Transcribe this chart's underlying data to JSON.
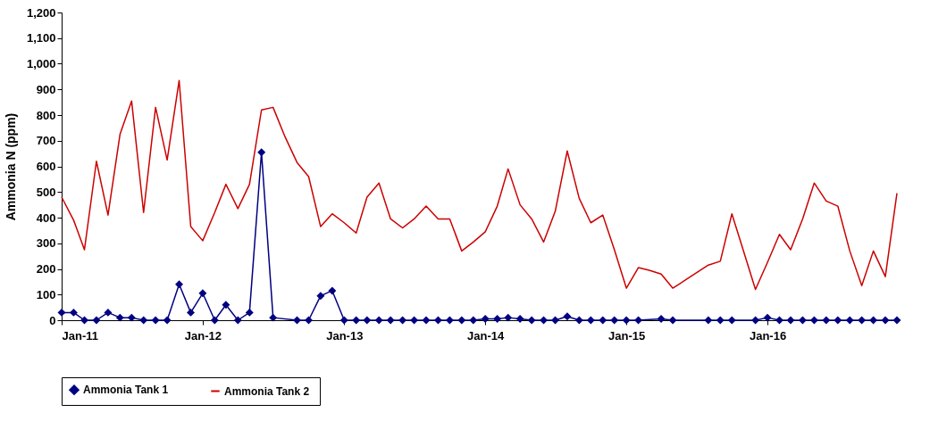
{
  "chart_data": {
    "type": "line",
    "ylabel": "Ammonia N (ppm)",
    "x": [
      "2011-01",
      "2011-02",
      "2011-03",
      "2011-04",
      "2011-05",
      "2011-06",
      "2011-07",
      "2011-08",
      "2011-09",
      "2011-10",
      "2011-11",
      "2011-12",
      "2012-01",
      "2012-02",
      "2012-03",
      "2012-04",
      "2012-05",
      "2012-06",
      "2012-07",
      "2012-08",
      "2012-09",
      "2012-10",
      "2012-11",
      "2012-12",
      "2013-01",
      "2013-02",
      "2013-03",
      "2013-04",
      "2013-05",
      "2013-06",
      "2013-07",
      "2013-08",
      "2013-09",
      "2013-10",
      "2013-11",
      "2013-12",
      "2014-01",
      "2014-02",
      "2014-03",
      "2014-04",
      "2014-05",
      "2014-06",
      "2014-07",
      "2014-08",
      "2014-09",
      "2014-10",
      "2014-11",
      "2014-12",
      "2015-01",
      "2015-02",
      "2015-03",
      "2015-04",
      "2015-05",
      "2015-06",
      "2015-07",
      "2015-08",
      "2015-09",
      "2015-10",
      "2015-11",
      "2015-12",
      "2016-01",
      "2016-02",
      "2016-03",
      "2016-04",
      "2016-05",
      "2016-06",
      "2016-07",
      "2016-08",
      "2016-09",
      "2016-10",
      "2016-11",
      "2016-12"
    ],
    "series": [
      {
        "name": "Ammonia  Tank 1",
        "color": "#000080",
        "marker": "diamond",
        "values": [
          30,
          30,
          0,
          0,
          30,
          10,
          10,
          0,
          0,
          0,
          140,
          30,
          105,
          0,
          60,
          0,
          30,
          655,
          10,
          null,
          0,
          0,
          95,
          115,
          0,
          0,
          0,
          0,
          0,
          0,
          0,
          0,
          0,
          0,
          0,
          0,
          5,
          5,
          10,
          5,
          0,
          0,
          0,
          15,
          0,
          0,
          0,
          0,
          0,
          0,
          null,
          5,
          0,
          null,
          null,
          0,
          0,
          0,
          null,
          0,
          10,
          0,
          0,
          0,
          0,
          0,
          0,
          0,
          0,
          0,
          0,
          0
        ]
      },
      {
        "name": "Ammonia  Tank 2",
        "color": "#cc0000",
        "marker": "none",
        "values": [
          480,
          390,
          275,
          620,
          410,
          725,
          855,
          420,
          830,
          625,
          935,
          365,
          310,
          420,
          530,
          435,
          530,
          820,
          830,
          715,
          615,
          560,
          365,
          415,
          380,
          340,
          480,
          535,
          395,
          360,
          395,
          445,
          395,
          395,
          270,
          305,
          345,
          445,
          590,
          450,
          395,
          305,
          425,
          660,
          475,
          380,
          410,
          275,
          125,
          205,
          195,
          180,
          125,
          155,
          185,
          215,
          230,
          415,
          265,
          120,
          225,
          335,
          275,
          395,
          535,
          465,
          445,
          270,
          135,
          270,
          170,
          495
        ]
      }
    ],
    "xlim": [
      "2011-01",
      "2016-12"
    ],
    "xticks": [
      {
        "value": "2011-01",
        "label": "Jan-11"
      },
      {
        "value": "2012-01",
        "label": "Jan-12"
      },
      {
        "value": "2013-01",
        "label": "Jan-13"
      },
      {
        "value": "2014-01",
        "label": "Jan-14"
      },
      {
        "value": "2015-01",
        "label": "Jan-15"
      },
      {
        "value": "2016-01",
        "label": "Jan-16"
      }
    ],
    "ylim": [
      0,
      1200
    ],
    "yticks": [
      0,
      100,
      200,
      300,
      400,
      500,
      600,
      700,
      800,
      900,
      {
        "value": 1000,
        "label": "1,000"
      },
      {
        "value": 1100,
        "label": "1,100"
      },
      {
        "value": 1200,
        "label": "1,200"
      }
    ],
    "grid": false,
    "legend": "bottom"
  }
}
